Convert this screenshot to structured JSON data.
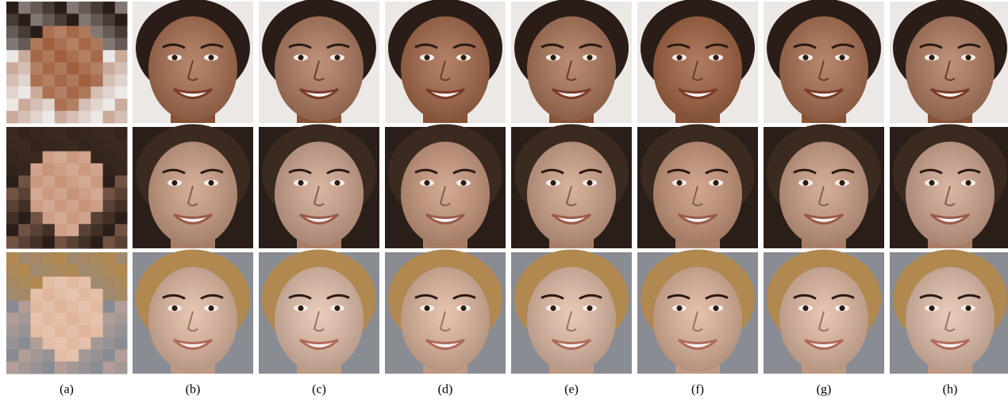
{
  "figure": {
    "captions": [
      "(a)",
      "(b)",
      "(c)",
      "(d)",
      "(e)",
      "(f)",
      "(g)",
      "(h)"
    ]
  }
}
